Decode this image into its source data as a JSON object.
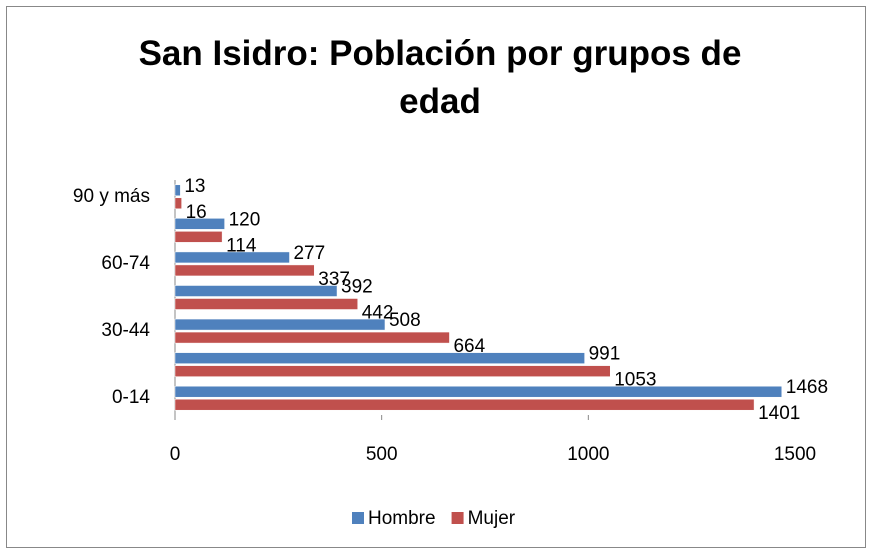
{
  "chart_data": {
    "type": "hbar",
    "title": "San Isidro: Población por grupos de edad",
    "categories": [
      "0-14",
      null,
      "30-44",
      null,
      "60-74",
      null,
      "90 y  más"
    ],
    "series": [
      {
        "name": "Hombre",
        "color": "#4f81bd",
        "values": [
          1468,
          991,
          508,
          392,
          277,
          120,
          13
        ]
      },
      {
        "name": "Mujer",
        "color": "#c0504d",
        "values": [
          1401,
          1053,
          664,
          442,
          337,
          114,
          16
        ]
      }
    ],
    "xlim": [
      0,
      1500
    ],
    "xticks": [
      0,
      500,
      1000,
      1500
    ],
    "legend": "bottom"
  }
}
